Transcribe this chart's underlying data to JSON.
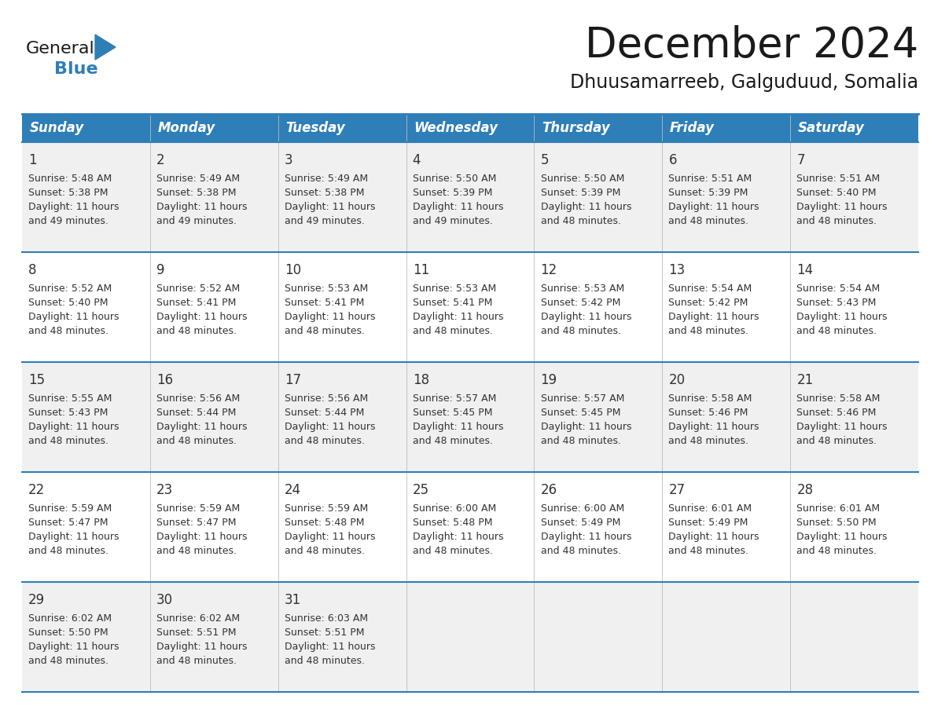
{
  "title": "December 2024",
  "subtitle": "Dhuusamarreeb, Galguduud, Somalia",
  "header_color": "#2E7EB8",
  "header_text_color": "#FFFFFF",
  "bg_color": "#FFFFFF",
  "row_alt_color": "#F0F0F0",
  "text_color": "#333333",
  "days_of_week": [
    "Sunday",
    "Monday",
    "Tuesday",
    "Wednesday",
    "Thursday",
    "Friday",
    "Saturday"
  ],
  "calendar_data": [
    [
      {
        "day": "1",
        "sunrise": "5:48 AM",
        "sunset": "5:38 PM",
        "daylight_h": "11 hours",
        "daylight_m": "49 minutes."
      },
      {
        "day": "2",
        "sunrise": "5:49 AM",
        "sunset": "5:38 PM",
        "daylight_h": "11 hours",
        "daylight_m": "49 minutes."
      },
      {
        "day": "3",
        "sunrise": "5:49 AM",
        "sunset": "5:38 PM",
        "daylight_h": "11 hours",
        "daylight_m": "49 minutes."
      },
      {
        "day": "4",
        "sunrise": "5:50 AM",
        "sunset": "5:39 PM",
        "daylight_h": "11 hours",
        "daylight_m": "49 minutes."
      },
      {
        "day": "5",
        "sunrise": "5:50 AM",
        "sunset": "5:39 PM",
        "daylight_h": "11 hours",
        "daylight_m": "48 minutes."
      },
      {
        "day": "6",
        "sunrise": "5:51 AM",
        "sunset": "5:39 PM",
        "daylight_h": "11 hours",
        "daylight_m": "48 minutes."
      },
      {
        "day": "7",
        "sunrise": "5:51 AM",
        "sunset": "5:40 PM",
        "daylight_h": "11 hours",
        "daylight_m": "48 minutes."
      }
    ],
    [
      {
        "day": "8",
        "sunrise": "5:52 AM",
        "sunset": "5:40 PM",
        "daylight_h": "11 hours",
        "daylight_m": "48 minutes."
      },
      {
        "day": "9",
        "sunrise": "5:52 AM",
        "sunset": "5:41 PM",
        "daylight_h": "11 hours",
        "daylight_m": "48 minutes."
      },
      {
        "day": "10",
        "sunrise": "5:53 AM",
        "sunset": "5:41 PM",
        "daylight_h": "11 hours",
        "daylight_m": "48 minutes."
      },
      {
        "day": "11",
        "sunrise": "5:53 AM",
        "sunset": "5:41 PM",
        "daylight_h": "11 hours",
        "daylight_m": "48 minutes."
      },
      {
        "day": "12",
        "sunrise": "5:53 AM",
        "sunset": "5:42 PM",
        "daylight_h": "11 hours",
        "daylight_m": "48 minutes."
      },
      {
        "day": "13",
        "sunrise": "5:54 AM",
        "sunset": "5:42 PM",
        "daylight_h": "11 hours",
        "daylight_m": "48 minutes."
      },
      {
        "day": "14",
        "sunrise": "5:54 AM",
        "sunset": "5:43 PM",
        "daylight_h": "11 hours",
        "daylight_m": "48 minutes."
      }
    ],
    [
      {
        "day": "15",
        "sunrise": "5:55 AM",
        "sunset": "5:43 PM",
        "daylight_h": "11 hours",
        "daylight_m": "48 minutes."
      },
      {
        "day": "16",
        "sunrise": "5:56 AM",
        "sunset": "5:44 PM",
        "daylight_h": "11 hours",
        "daylight_m": "48 minutes."
      },
      {
        "day": "17",
        "sunrise": "5:56 AM",
        "sunset": "5:44 PM",
        "daylight_h": "11 hours",
        "daylight_m": "48 minutes."
      },
      {
        "day": "18",
        "sunrise": "5:57 AM",
        "sunset": "5:45 PM",
        "daylight_h": "11 hours",
        "daylight_m": "48 minutes."
      },
      {
        "day": "19",
        "sunrise": "5:57 AM",
        "sunset": "5:45 PM",
        "daylight_h": "11 hours",
        "daylight_m": "48 minutes."
      },
      {
        "day": "20",
        "sunrise": "5:58 AM",
        "sunset": "5:46 PM",
        "daylight_h": "11 hours",
        "daylight_m": "48 minutes."
      },
      {
        "day": "21",
        "sunrise": "5:58 AM",
        "sunset": "5:46 PM",
        "daylight_h": "11 hours",
        "daylight_m": "48 minutes."
      }
    ],
    [
      {
        "day": "22",
        "sunrise": "5:59 AM",
        "sunset": "5:47 PM",
        "daylight_h": "11 hours",
        "daylight_m": "48 minutes."
      },
      {
        "day": "23",
        "sunrise": "5:59 AM",
        "sunset": "5:47 PM",
        "daylight_h": "11 hours",
        "daylight_m": "48 minutes."
      },
      {
        "day": "24",
        "sunrise": "5:59 AM",
        "sunset": "5:48 PM",
        "daylight_h": "11 hours",
        "daylight_m": "48 minutes."
      },
      {
        "day": "25",
        "sunrise": "6:00 AM",
        "sunset": "5:48 PM",
        "daylight_h": "11 hours",
        "daylight_m": "48 minutes."
      },
      {
        "day": "26",
        "sunrise": "6:00 AM",
        "sunset": "5:49 PM",
        "daylight_h": "11 hours",
        "daylight_m": "48 minutes."
      },
      {
        "day": "27",
        "sunrise": "6:01 AM",
        "sunset": "5:49 PM",
        "daylight_h": "11 hours",
        "daylight_m": "48 minutes."
      },
      {
        "day": "28",
        "sunrise": "6:01 AM",
        "sunset": "5:50 PM",
        "daylight_h": "11 hours",
        "daylight_m": "48 minutes."
      }
    ],
    [
      {
        "day": "29",
        "sunrise": "6:02 AM",
        "sunset": "5:50 PM",
        "daylight_h": "11 hours",
        "daylight_m": "48 minutes."
      },
      {
        "day": "30",
        "sunrise": "6:02 AM",
        "sunset": "5:51 PM",
        "daylight_h": "11 hours",
        "daylight_m": "48 minutes."
      },
      {
        "day": "31",
        "sunrise": "6:03 AM",
        "sunset": "5:51 PM",
        "daylight_h": "11 hours",
        "daylight_m": "48 minutes."
      },
      null,
      null,
      null,
      null
    ]
  ],
  "logo_text1": "General",
  "logo_text2": "Blue",
  "logo_color1": "#1a1a1a",
  "logo_color2": "#2E7EB8",
  "triangle_color": "#2E7EB8",
  "border_line_color": "#2E7EB8",
  "cell_line_color": "#BBBBBB",
  "title_fontsize": 38,
  "subtitle_fontsize": 17,
  "header_fontsize": 12,
  "day_num_fontsize": 12,
  "cell_text_fontsize": 9
}
